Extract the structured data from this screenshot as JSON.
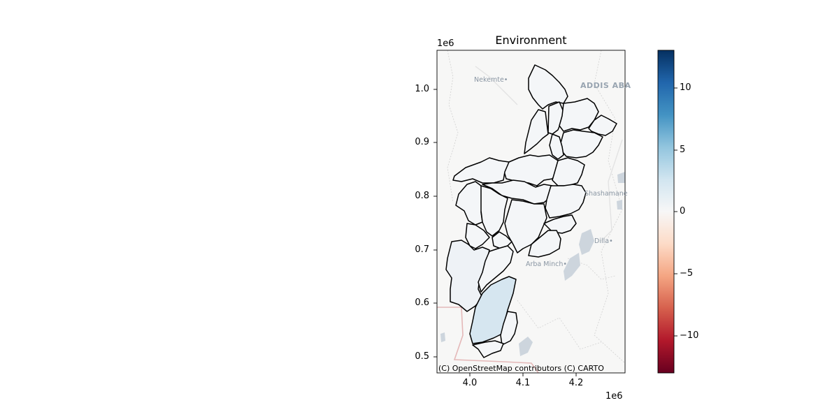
{
  "map": {
    "title": "Environment",
    "y_offset": "1e6",
    "x_offset": "1e6",
    "y_ticks": [
      {
        "label": "1.0",
        "value": 1.0
      },
      {
        "label": "0.9",
        "value": 0.9
      },
      {
        "label": "0.8",
        "value": 0.8
      },
      {
        "label": "0.7",
        "value": 0.7
      },
      {
        "label": "0.6",
        "value": 0.6
      },
      {
        "label": "0.5",
        "value": 0.5
      }
    ],
    "x_ticks": [
      {
        "label": "4.0",
        "value": 4.0
      },
      {
        "label": "4.1",
        "value": 4.1
      },
      {
        "label": "4.2",
        "value": 4.2
      }
    ],
    "attribution": "(C) OpenStreetMap contributors (C) CARTO",
    "places": [
      {
        "label": "Nekemte",
        "dot": true
      },
      {
        "label": "ADDIS ABA",
        "dot": false
      },
      {
        "label": "Shashamane",
        "dot": false
      },
      {
        "label": "Dilla",
        "dot": true
      },
      {
        "label": "Arba Minch",
        "dot": true
      }
    ],
    "colors": {
      "region_neutral": "#f4f6f8",
      "region_light": "#eef2f6",
      "region_highlight": "#d6e6f0",
      "boundary": "#000000",
      "basemap": "#f7f7f6",
      "water": "#cdd5dd"
    }
  },
  "colorbar": {
    "colormap": "RdBu",
    "range": [
      -13,
      13
    ],
    "ticks": [
      {
        "label": "10",
        "value": 10
      },
      {
        "label": "5",
        "value": 5
      },
      {
        "label": "0",
        "value": 0
      },
      {
        "label": "−5",
        "value": -5
      },
      {
        "label": "−10",
        "value": -10
      }
    ]
  }
}
